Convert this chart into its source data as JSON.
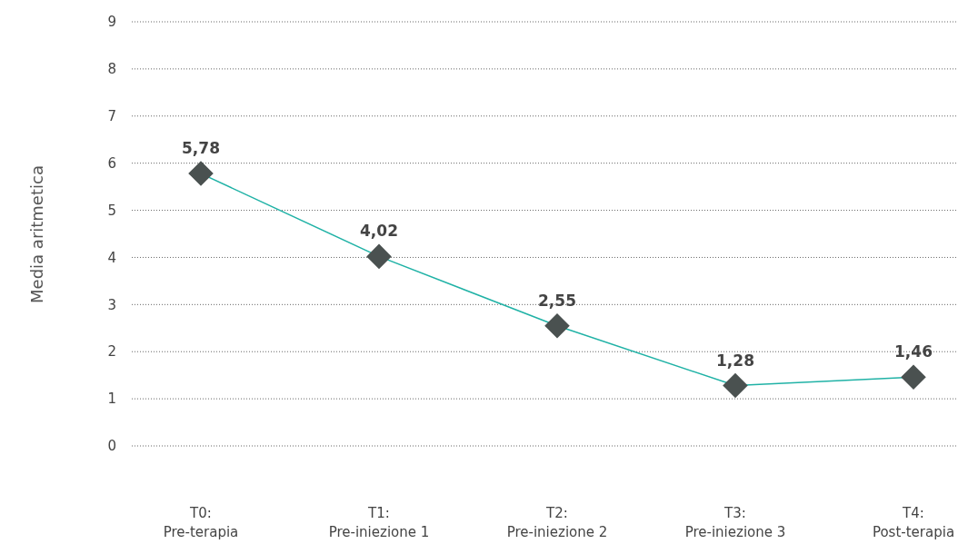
{
  "chart_data": {
    "type": "line",
    "ylabel": "Media aritmetica",
    "categories": [
      "T0:\nPre-terapia",
      "T1:\nPre-iniezione 1",
      "T2:\nPre-iniezione 2",
      "T3:\nPre-iniezione 3",
      "T4:\nPost-terapia"
    ],
    "series": [
      {
        "color": "#20b2a6",
        "values": [
          5.78,
          4.02,
          2.55,
          1.28,
          1.46
        ],
        "value_labels": [
          "5,78",
          "4,02",
          "2,55",
          "1,28",
          "1,46"
        ]
      }
    ],
    "ylim": [
      0,
      9
    ],
    "yticks": [
      0,
      1,
      2,
      3,
      4,
      5,
      6,
      7,
      8,
      9
    ],
    "grid": "y",
    "marker": "diamond",
    "line_style": "solid"
  }
}
